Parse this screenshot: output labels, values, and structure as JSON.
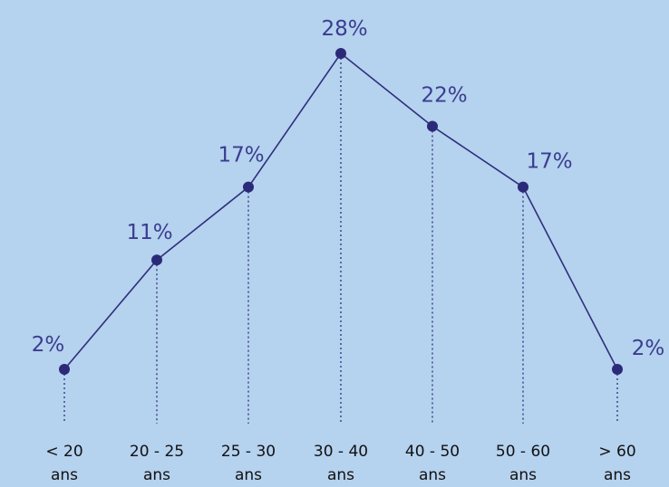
{
  "chart_data": {
    "type": "line",
    "categories": [
      [
        "< 20",
        "ans"
      ],
      [
        "20 - 25",
        "ans"
      ],
      [
        "25 - 30",
        "ans"
      ],
      [
        "30 - 40",
        "ans"
      ],
      [
        "40 - 50",
        "ans"
      ],
      [
        "50 - 60",
        "ans"
      ],
      [
        "> 60",
        "ans"
      ]
    ],
    "values": [
      2,
      11,
      17,
      28,
      22,
      17,
      2
    ],
    "labels": [
      "2%",
      "11%",
      "17%",
      "28%",
      "22%",
      "17%",
      "2%"
    ],
    "ylim": [
      0,
      30
    ],
    "grid": false,
    "legend": "none",
    "title": "",
    "xlabel": "",
    "ylabel": ""
  },
  "colors": {
    "background": "#b5d2ef",
    "line": "#2f2f7a",
    "marker": "#2b2a78",
    "label": "#3a3d8f",
    "tick_text": "#111111"
  }
}
